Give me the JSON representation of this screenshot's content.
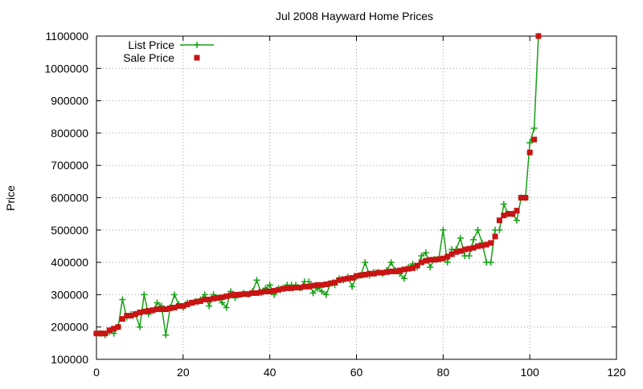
{
  "chart_data": {
    "type": "line",
    "title": "Jul 2008 Hayward Home Prices",
    "xlabel": "",
    "ylabel": "Price",
    "xlim": [
      0,
      120
    ],
    "ylim": [
      100000,
      1100000
    ],
    "x_ticks": [
      "0",
      "20",
      "40",
      "60",
      "80",
      "100",
      "120"
    ],
    "y_ticks": [
      "100000",
      "200000",
      "300000",
      "400000",
      "500000",
      "600000",
      "700000",
      "800000",
      "900000",
      "1000000",
      "1100000"
    ],
    "grid": true,
    "legend_position": "top-left",
    "x": [
      0,
      1,
      2,
      3,
      4,
      5,
      6,
      7,
      8,
      9,
      10,
      11,
      12,
      13,
      14,
      15,
      16,
      17,
      18,
      19,
      20,
      21,
      22,
      23,
      24,
      25,
      26,
      27,
      28,
      29,
      30,
      31,
      32,
      33,
      34,
      35,
      36,
      37,
      38,
      39,
      40,
      41,
      42,
      43,
      44,
      45,
      46,
      47,
      48,
      49,
      50,
      51,
      52,
      53,
      54,
      55,
      56,
      57,
      58,
      59,
      60,
      61,
      62,
      63,
      64,
      65,
      66,
      67,
      68,
      69,
      70,
      71,
      72,
      73,
      74,
      75,
      76,
      77,
      78,
      79,
      80,
      81,
      82,
      83,
      84,
      85,
      86,
      87,
      88,
      89,
      90,
      91,
      92,
      93,
      94,
      95,
      96,
      97,
      98,
      99,
      100,
      101,
      102
    ],
    "series": [
      {
        "name": "List Price",
        "color": "#16a016",
        "style": "line-plus",
        "values": [
          180000,
          180000,
          175000,
          185000,
          180000,
          200000,
          285000,
          230000,
          240000,
          240000,
          200000,
          300000,
          240000,
          250000,
          275000,
          265000,
          175000,
          260000,
          300000,
          270000,
          260000,
          275000,
          275000,
          280000,
          285000,
          300000,
          265000,
          300000,
          290000,
          275000,
          260000,
          310000,
          290000,
          300000,
          305000,
          300000,
          310000,
          345000,
          305000,
          320000,
          330000,
          300000,
          320000,
          320000,
          330000,
          330000,
          330000,
          320000,
          340000,
          340000,
          305000,
          320000,
          310000,
          300000,
          335000,
          330000,
          350000,
          345000,
          355000,
          325000,
          355000,
          360000,
          400000,
          360000,
          370000,
          370000,
          365000,
          375000,
          400000,
          375000,
          365000,
          350000,
          385000,
          395000,
          385000,
          420000,
          430000,
          385000,
          410000,
          410000,
          500000,
          400000,
          440000,
          440000,
          475000,
          420000,
          420000,
          470000,
          500000,
          460000,
          400000,
          400000,
          500000,
          500000,
          580000,
          550000,
          550000,
          530000,
          600000,
          600000,
          770000,
          815000,
          1100000
        ]
      },
      {
        "name": "Sale Price",
        "color": "#c81414",
        "style": "square-markers",
        "values": [
          180000,
          180000,
          180000,
          190000,
          195000,
          200000,
          225000,
          235000,
          235000,
          240000,
          245000,
          248000,
          250000,
          252000,
          255000,
          255000,
          255000,
          258000,
          260000,
          265000,
          265000,
          270000,
          275000,
          278000,
          280000,
          285000,
          285000,
          288000,
          290000,
          292000,
          295000,
          298000,
          300000,
          300000,
          302000,
          302000,
          305000,
          305000,
          308000,
          310000,
          310000,
          312000,
          315000,
          318000,
          320000,
          320000,
          322000,
          322000,
          325000,
          325000,
          328000,
          330000,
          330000,
          332000,
          335000,
          338000,
          345000,
          348000,
          350000,
          352000,
          358000,
          360000,
          362000,
          365000,
          365000,
          368000,
          368000,
          370000,
          372000,
          372000,
          375000,
          378000,
          380000,
          382000,
          390000,
          400000,
          405000,
          408000,
          408000,
          410000,
          412000,
          418000,
          425000,
          432000,
          435000,
          440000,
          442000,
          445000,
          450000,
          452000,
          455000,
          460000,
          480000,
          530000,
          545000,
          550000,
          550000,
          560000,
          600000,
          600000,
          740000,
          780000,
          1100000
        ]
      }
    ]
  }
}
